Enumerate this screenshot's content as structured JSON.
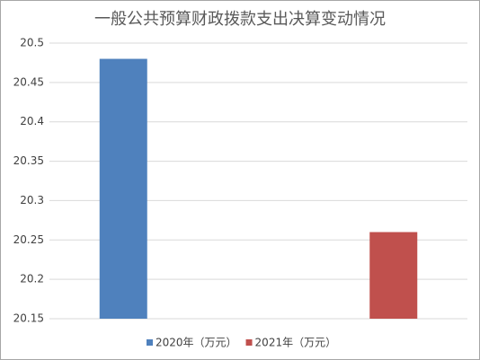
{
  "chart_data": {
    "type": "bar",
    "title": "一般公共预算财政拨款支出决算变动情况",
    "categories": [
      null,
      null
    ],
    "series": [
      {
        "name": "2020年（万元）",
        "color": "#4f81bd",
        "values": [
          20.48,
          null
        ]
      },
      {
        "name": "2021年（万元）",
        "color": "#c0504d",
        "values": [
          null,
          20.26
        ]
      }
    ],
    "ylim": [
      20.15,
      20.5
    ],
    "yticks": [
      20.15,
      20.2,
      20.25,
      20.3,
      20.35,
      20.4,
      20.45,
      20.5
    ],
    "grid": true,
    "legend": "bottom"
  }
}
